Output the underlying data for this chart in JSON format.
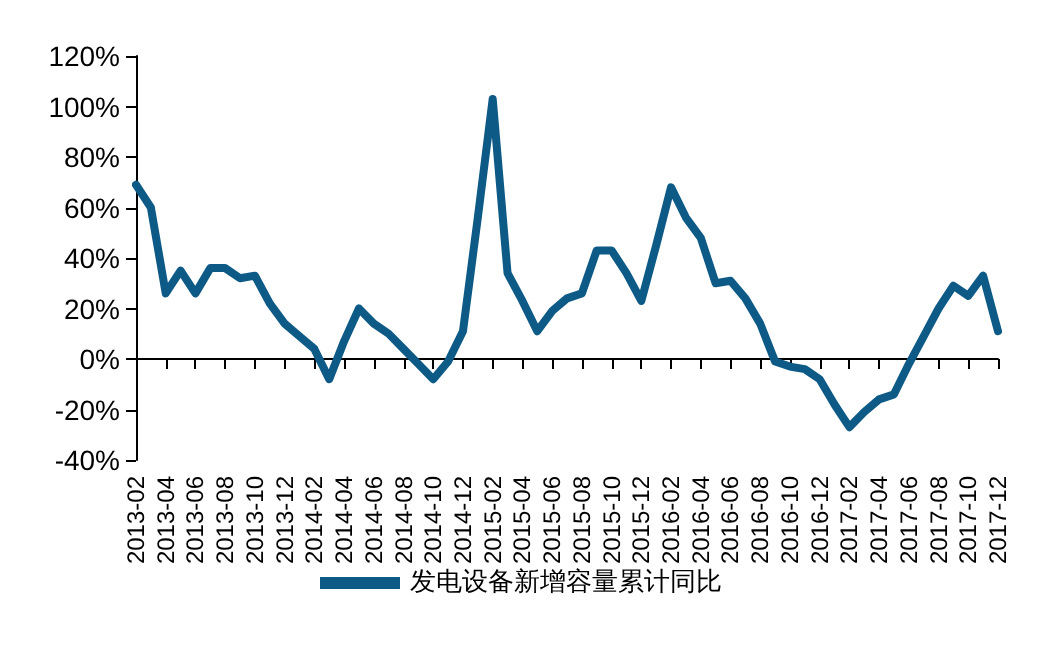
{
  "chart_data": {
    "type": "line",
    "categories": [
      "2013-02",
      null,
      "2013-04",
      null,
      "2013-06",
      null,
      "2013-08",
      null,
      "2013-10",
      null,
      "2013-12",
      null,
      "2014-02",
      null,
      "2014-04",
      null,
      "2014-06",
      null,
      "2014-08",
      null,
      "2014-10",
      null,
      "2014-12",
      null,
      "2015-02",
      null,
      "2015-04",
      null,
      "2015-06",
      null,
      "2015-08",
      null,
      "2015-10",
      null,
      "2015-12",
      null,
      "2016-02",
      null,
      "2016-04",
      null,
      "2016-06",
      null,
      "2016-08",
      null,
      "2016-10",
      null,
      "2016-12",
      null,
      "2017-02",
      null,
      "2017-04",
      null,
      "2017-06",
      null,
      "2017-08",
      null,
      "2017-10",
      null,
      "2017-12"
    ],
    "series": [
      {
        "name": "发电设备新增容量累计同比",
        "color": "#0d5a86",
        "values": [
          69,
          60,
          26,
          35,
          26,
          36,
          36,
          32,
          33,
          22,
          14,
          9,
          4,
          -8,
          7,
          20,
          14,
          10,
          4,
          -2,
          -8,
          -1,
          11,
          56,
          103,
          34,
          23,
          11,
          19,
          24,
          26,
          43,
          43,
          34,
          23,
          45,
          68,
          56,
          48,
          30,
          31,
          24,
          14,
          -1,
          -3,
          -4,
          -8,
          -18,
          -27,
          -21,
          -16,
          -14,
          -2,
          9,
          20,
          29,
          25,
          33,
          11
        ]
      }
    ],
    "ylim": [
      -40,
      120
    ],
    "yticks": [
      {
        "value": -40,
        "label": "-40%"
      },
      {
        "value": -20,
        "label": "-20%"
      },
      {
        "value": 0,
        "label": "0%"
      },
      {
        "value": 20,
        "label": "20%"
      },
      {
        "value": 40,
        "label": "40%"
      },
      {
        "value": 60,
        "label": "60%"
      },
      {
        "value": 80,
        "label": "80%"
      },
      {
        "value": 100,
        "label": "100%"
      },
      {
        "value": 120,
        "label": "120%"
      }
    ],
    "legend": "bottom",
    "marker": "none",
    "line_style": "solid"
  }
}
